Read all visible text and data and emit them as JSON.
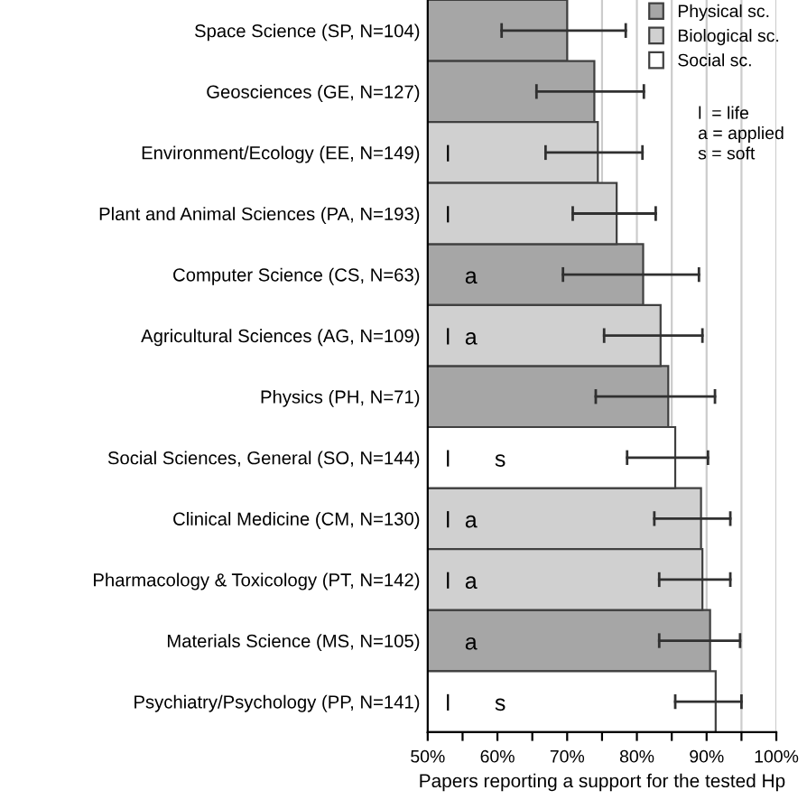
{
  "chart_data": {
    "type": "bar",
    "orientation": "horizontal",
    "stacked": true,
    "xlabel": "Papers reporting a support for the tested Hp",
    "categories": [
      "Space Science (SP, N=104)",
      "Geosciences (GE, N=127)",
      "Environment/Ecology (EE, N=149)",
      "Plant and Animal Sciences (PA, N=193)",
      "Computer Science (CS, N=63)",
      "Agricultural Sciences (AG, N=109)",
      "Physics (PH, N=71)",
      "Social Sciences, General (SO, N=144)",
      "Clinical Medicine (CM, N=130)",
      "Pharmacology & Toxicology (PT, N=142)",
      "Materials Science (MS, N=105)",
      "Psychiatry/Psychology (PP, N=141)"
    ],
    "series": [
      {
        "name": "Physical sc.",
        "color": "#a6a6a6",
        "values": [
          70.0,
          73.9,
          null,
          null,
          80.9,
          null,
          84.5,
          null,
          null,
          null,
          90.5,
          null
        ],
        "errors": [
          [
            60.6,
            78.4
          ],
          [
            65.6,
            81.0
          ],
          null,
          null,
          [
            69.4,
            88.9
          ],
          null,
          [
            74.1,
            91.2
          ],
          null,
          null,
          null,
          [
            83.2,
            94.8
          ],
          null
        ]
      },
      {
        "name": "Biological sc.",
        "color": "#d0d0d0",
        "values": [
          null,
          null,
          74.4,
          77.1,
          null,
          83.4,
          null,
          null,
          89.2,
          89.4,
          null,
          null
        ],
        "errors": [
          null,
          null,
          [
            66.9,
            80.8
          ],
          [
            70.8,
            82.7
          ],
          null,
          [
            75.3,
            89.4
          ],
          null,
          null,
          [
            82.5,
            93.4
          ],
          [
            83.2,
            93.4
          ],
          null,
          null
        ]
      },
      {
        "name": "Social sc.",
        "color": "#ffffff",
        "values": [
          null,
          null,
          null,
          null,
          null,
          null,
          null,
          85.5,
          null,
          null,
          null,
          91.3
        ],
        "errors": [
          null,
          null,
          null,
          null,
          null,
          null,
          null,
          [
            78.6,
            90.2
          ],
          null,
          null,
          null,
          [
            85.5,
            95.0
          ]
        ]
      }
    ],
    "xlim": [
      50,
      100
    ],
    "xticks": [
      {
        "value": 50,
        "label": "50%"
      },
      {
        "value": 55,
        "label": null
      },
      {
        "value": 60,
        "label": "60%"
      },
      {
        "value": 65,
        "label": null
      },
      {
        "value": 70,
        "label": "70%"
      },
      {
        "value": 75,
        "label": null
      },
      {
        "value": 80,
        "label": "80%"
      },
      {
        "value": 85,
        "label": null
      },
      {
        "value": 90,
        "label": "90%"
      },
      {
        "value": 95,
        "label": null
      },
      {
        "value": 100,
        "label": "100%"
      }
    ],
    "grid": "x",
    "legend": "top right",
    "annotations": [
      {
        "text": "l",
        "x": 52.9,
        "y": "Environment/Ecology (EE, N=149)"
      },
      {
        "text": "l",
        "x": 52.9,
        "y": "Plant and Animal Sciences (PA, N=193)"
      },
      {
        "text": "a",
        "x": 56.2,
        "y": "Computer Science (CS, N=63)"
      },
      {
        "text": "l",
        "x": 52.9,
        "y": "Agricultural Sciences (AG, N=109)"
      },
      {
        "text": "a",
        "x": 56.2,
        "y": "Agricultural Sciences (AG, N=109)"
      },
      {
        "text": "l",
        "x": 52.9,
        "y": "Social Sciences, General (SO, N=144)"
      },
      {
        "text": "s",
        "x": 60.4,
        "y": "Social Sciences, General (SO, N=144)"
      },
      {
        "text": "l",
        "x": 52.9,
        "y": "Clinical Medicine (CM, N=130)"
      },
      {
        "text": "a",
        "x": 56.2,
        "y": "Clinical Medicine (CM, N=130)"
      },
      {
        "text": "l",
        "x": 52.9,
        "y": "Pharmacology & Toxicology (PT, N=142)"
      },
      {
        "text": "a",
        "x": 56.2,
        "y": "Pharmacology & Toxicology (PT, N=142)"
      },
      {
        "text": "a",
        "x": 56.2,
        "y": "Materials Science (MS, N=105)"
      },
      {
        "text": "l",
        "x": 52.9,
        "y": "Psychiatry/Psychology (PP, N=141)"
      },
      {
        "text": "s",
        "x": 60.4,
        "y": "Psychiatry/Psychology (PP, N=141)"
      },
      "l  = life\na = applied\ns = soft"
    ]
  }
}
